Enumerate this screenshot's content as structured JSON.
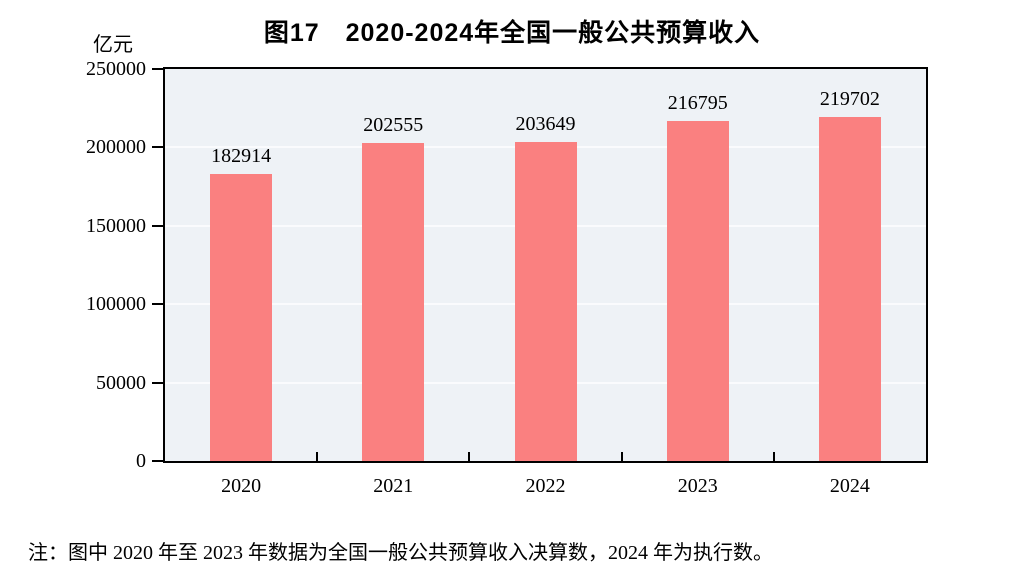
{
  "title": "图17　2020-2024年全国一般公共预算收入",
  "y_unit_label": "亿元",
  "note": "注：图中 2020 年至 2023 年数据为全国一般公共预算收入决算数，2024 年为执行数。",
  "chart_data": {
    "type": "bar",
    "categories": [
      "2020",
      "2021",
      "2022",
      "2023",
      "2024"
    ],
    "values": [
      182914,
      202555,
      203649,
      216795,
      219702
    ],
    "title": "图17　2020-2024年全国一般公共预算收入",
    "xlabel": "",
    "ylabel": "亿元",
    "ylim": [
      0,
      250000
    ],
    "y_ticks": [
      0,
      50000,
      100000,
      150000,
      200000,
      250000
    ],
    "grid": "horizontal",
    "legend": "none",
    "data_labels": true
  },
  "style": {
    "bar_color": "#fa8080",
    "plot_bg": "#eef2f6",
    "gridline_color": "#fafbfd",
    "axis_color": "#000000",
    "text_color": "#000000"
  }
}
